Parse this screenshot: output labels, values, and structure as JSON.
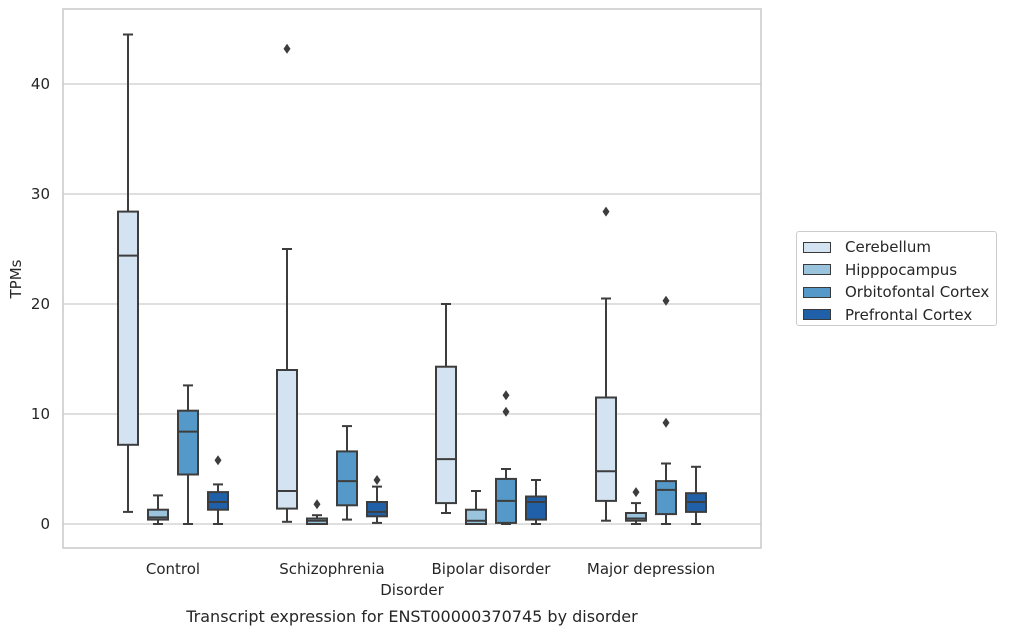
{
  "chart_data": {
    "type": "box",
    "caption": "Transcript expression for ENST00000370745 by disorder",
    "xlabel": "Disorder",
    "ylabel": "TPMs",
    "ylim": [
      -2,
      47
    ],
    "yticks": [
      0,
      10,
      20,
      30,
      40
    ],
    "grid": "horizontal",
    "legend_position": "right",
    "categories": [
      "Control",
      "Schizophrenia",
      "Bipolar disorder",
      "Major depression"
    ],
    "series": [
      {
        "name": "Cerebellum",
        "color": "#d4e3f1",
        "boxes": [
          {
            "whisker_low": 1.1,
            "q1": 7.2,
            "median": 24.4,
            "q3": 28.4,
            "whisker_high": 44.5,
            "outliers": []
          },
          {
            "whisker_low": 0.2,
            "q1": 1.4,
            "median": 3.0,
            "q3": 14.0,
            "whisker_high": 25.0,
            "outliers": [
              43.2
            ]
          },
          {
            "whisker_low": 1.0,
            "q1": 1.9,
            "median": 5.9,
            "q3": 14.3,
            "whisker_high": 20.0,
            "outliers": []
          },
          {
            "whisker_low": 0.3,
            "q1": 2.1,
            "median": 4.8,
            "q3": 11.5,
            "whisker_high": 20.5,
            "outliers": [
              28.4
            ]
          }
        ]
      },
      {
        "name": "Hipppocampus",
        "color": "#9ac4de",
        "boxes": [
          {
            "whisker_low": 0.0,
            "q1": 0.4,
            "median": 0.6,
            "q3": 1.3,
            "whisker_high": 2.6,
            "outliers": []
          },
          {
            "whisker_low": 0.0,
            "q1": 0.0,
            "median": 0.3,
            "q3": 0.5,
            "whisker_high": 0.8,
            "outliers": [
              1.8
            ]
          },
          {
            "whisker_low": 0.0,
            "q1": 0.0,
            "median": 0.3,
            "q3": 1.3,
            "whisker_high": 3.0,
            "outliers": []
          },
          {
            "whisker_low": 0.0,
            "q1": 0.3,
            "median": 0.5,
            "q3": 1.0,
            "whisker_high": 1.9,
            "outliers": [
              2.9
            ]
          }
        ]
      },
      {
        "name": "Orbitofontal Cortex",
        "color": "#5599c8",
        "boxes": [
          {
            "whisker_low": 0.0,
            "q1": 4.5,
            "median": 8.4,
            "q3": 10.3,
            "whisker_high": 12.6,
            "outliers": []
          },
          {
            "whisker_low": 0.4,
            "q1": 1.7,
            "median": 3.9,
            "q3": 6.6,
            "whisker_high": 8.9,
            "outliers": []
          },
          {
            "whisker_low": 0.0,
            "q1": 0.1,
            "median": 2.1,
            "q3": 4.1,
            "whisker_high": 5.0,
            "outliers": [
              11.7,
              10.2
            ]
          },
          {
            "whisker_low": 0.0,
            "q1": 0.9,
            "median": 3.1,
            "q3": 3.9,
            "whisker_high": 5.5,
            "outliers": [
              20.3,
              9.2
            ]
          }
        ]
      },
      {
        "name": "Prefrontal Cortex",
        "color": "#2060a8",
        "boxes": [
          {
            "whisker_low": 0.0,
            "q1": 1.3,
            "median": 2.0,
            "q3": 2.9,
            "whisker_high": 3.6,
            "outliers": [
              5.8
            ]
          },
          {
            "whisker_low": 0.1,
            "q1": 0.7,
            "median": 1.1,
            "q3": 2.0,
            "whisker_high": 3.4,
            "outliers": [
              4.0
            ]
          },
          {
            "whisker_low": 0.0,
            "q1": 0.4,
            "median": 2.0,
            "q3": 2.5,
            "whisker_high": 4.0,
            "outliers": []
          },
          {
            "whisker_low": 0.0,
            "q1": 1.1,
            "median": 2.0,
            "q3": 2.8,
            "whisker_high": 5.2,
            "outliers": []
          }
        ]
      }
    ]
  }
}
